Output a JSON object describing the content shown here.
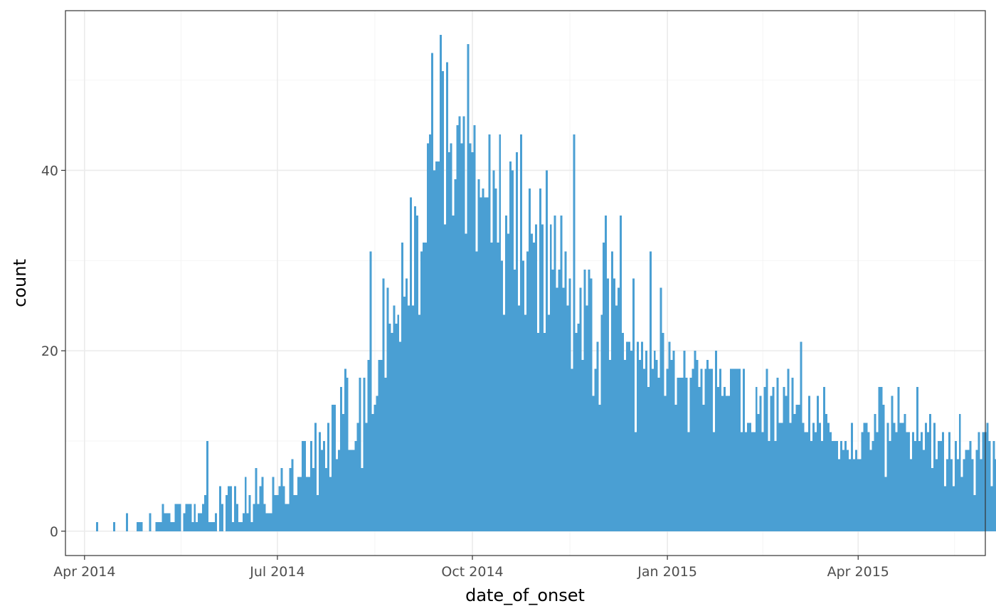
{
  "chart_data": {
    "type": "bar",
    "xlabel": "date_of_onset",
    "ylabel": "count",
    "x_ticks": [
      "Apr 2014",
      "Jul 2014",
      "Oct 2014",
      "Jan 2015",
      "Apr 2015"
    ],
    "x_tick_dates": [
      "2014-04-01",
      "2014-07-01",
      "2014-10-01",
      "2015-01-01",
      "2015-04-01"
    ],
    "y_ticks": [
      0,
      20,
      40
    ],
    "y_tick_labels": [
      "0",
      "20",
      "40"
    ],
    "xlim": [
      "2014-03-23",
      "2015-05-31"
    ],
    "ylim": [
      -2.7,
      57.7
    ],
    "grid": true,
    "legend": "none",
    "bar_color": "#4a9fd3",
    "series": [
      {
        "start_date": "2014-04-07",
        "values": [
          1,
          0,
          0,
          0,
          0,
          0,
          0,
          0,
          1,
          0,
          0,
          0,
          0,
          0,
          2,
          0,
          0,
          0,
          0,
          1,
          1,
          1,
          0,
          0,
          0,
          2,
          0,
          0,
          1,
          1,
          1,
          3,
          2,
          2,
          2,
          1,
          1,
          3,
          3,
          3,
          0,
          2,
          3,
          3,
          3,
          1,
          3,
          1,
          2,
          2,
          3,
          4,
          10,
          1,
          1,
          1,
          2,
          0,
          5,
          3,
          0,
          4,
          5,
          5,
          1,
          5,
          3,
          1,
          1,
          2,
          6,
          2,
          4,
          1,
          3,
          7,
          3,
          5,
          6,
          3,
          2,
          2,
          2,
          6,
          4,
          4,
          5,
          7,
          5,
          3,
          3,
          7,
          8,
          4,
          4,
          6,
          6,
          10,
          10,
          6,
          6,
          10,
          7,
          12,
          4,
          11,
          9,
          10,
          7,
          12,
          6,
          14,
          14,
          8,
          9,
          16,
          13,
          18,
          17,
          9,
          9,
          9,
          10,
          12,
          17,
          7,
          17,
          12,
          19,
          31,
          13,
          14,
          15,
          19,
          19,
          28,
          17,
          27,
          23,
          22,
          25,
          23,
          24,
          21,
          32,
          26,
          28,
          25,
          37,
          25,
          36,
          35,
          24,
          31,
          32,
          32,
          43,
          44,
          53,
          40,
          41,
          41,
          55,
          51,
          34,
          52,
          42,
          43,
          35,
          39,
          45,
          46,
          43,
          46,
          33,
          54,
          43,
          42,
          45,
          31,
          39,
          37,
          38,
          37,
          37,
          44,
          32,
          40,
          38,
          32,
          44,
          30,
          24,
          35,
          33,
          41,
          40,
          29,
          42,
          25,
          44,
          30,
          24,
          31,
          38,
          33,
          32,
          34,
          22,
          38,
          34,
          22,
          40,
          24,
          34,
          29,
          35,
          27,
          29,
          35,
          27,
          31,
          25,
          28,
          18,
          44,
          22,
          23,
          27,
          19,
          29,
          25,
          29,
          28,
          15,
          18,
          21,
          14,
          24,
          32,
          35,
          28,
          19,
          31,
          28,
          25,
          27,
          35,
          22,
          19,
          21,
          21,
          20,
          28,
          11,
          21,
          19,
          21,
          18,
          20,
          16,
          31,
          18,
          20,
          19,
          17,
          27,
          22,
          15,
          18,
          21,
          19,
          20,
          14,
          17,
          17,
          17,
          20,
          17,
          11,
          17,
          18,
          20,
          19,
          16,
          18,
          14,
          18,
          19,
          18,
          18,
          11,
          20,
          16,
          18,
          15,
          16,
          15,
          15,
          18,
          18,
          18,
          18,
          18,
          11,
          18,
          11,
          12,
          12,
          11,
          11,
          16,
          13,
          15,
          11,
          16,
          18,
          10,
          15,
          16,
          10,
          17,
          12,
          12,
          16,
          15,
          18,
          12,
          17,
          13,
          14,
          14,
          21,
          12,
          11,
          11,
          15,
          10,
          12,
          11,
          15,
          12,
          10,
          16,
          13,
          12,
          11,
          10,
          10,
          10,
          8,
          10,
          9,
          10,
          9,
          8,
          12,
          8,
          9,
          8,
          8,
          11,
          12,
          12,
          11,
          9,
          10,
          13,
          11,
          16,
          16,
          14,
          6,
          12,
          10,
          15,
          12,
          11,
          16,
          12,
          12,
          13,
          11,
          11,
          8,
          11,
          10,
          16,
          10,
          11,
          9,
          12,
          11,
          13,
          7,
          12,
          8,
          10,
          10,
          11,
          5,
          8,
          11,
          8,
          5,
          10,
          8,
          13,
          6,
          8,
          9,
          9,
          10,
          8,
          4,
          9,
          11,
          8,
          11,
          11,
          12,
          10,
          5,
          10,
          8,
          8,
          9,
          9,
          7,
          4,
          7,
          9,
          11,
          11,
          10,
          6,
          4,
          2,
          6,
          7,
          8,
          10,
          12,
          6,
          5,
          11,
          13,
          7,
          10,
          10,
          11,
          9,
          6,
          6,
          5,
          7,
          6,
          7,
          5,
          4,
          6,
          4,
          10,
          10,
          4,
          8,
          6,
          4,
          5,
          7,
          6,
          6,
          7,
          3,
          2,
          2
        ]
      }
    ]
  }
}
